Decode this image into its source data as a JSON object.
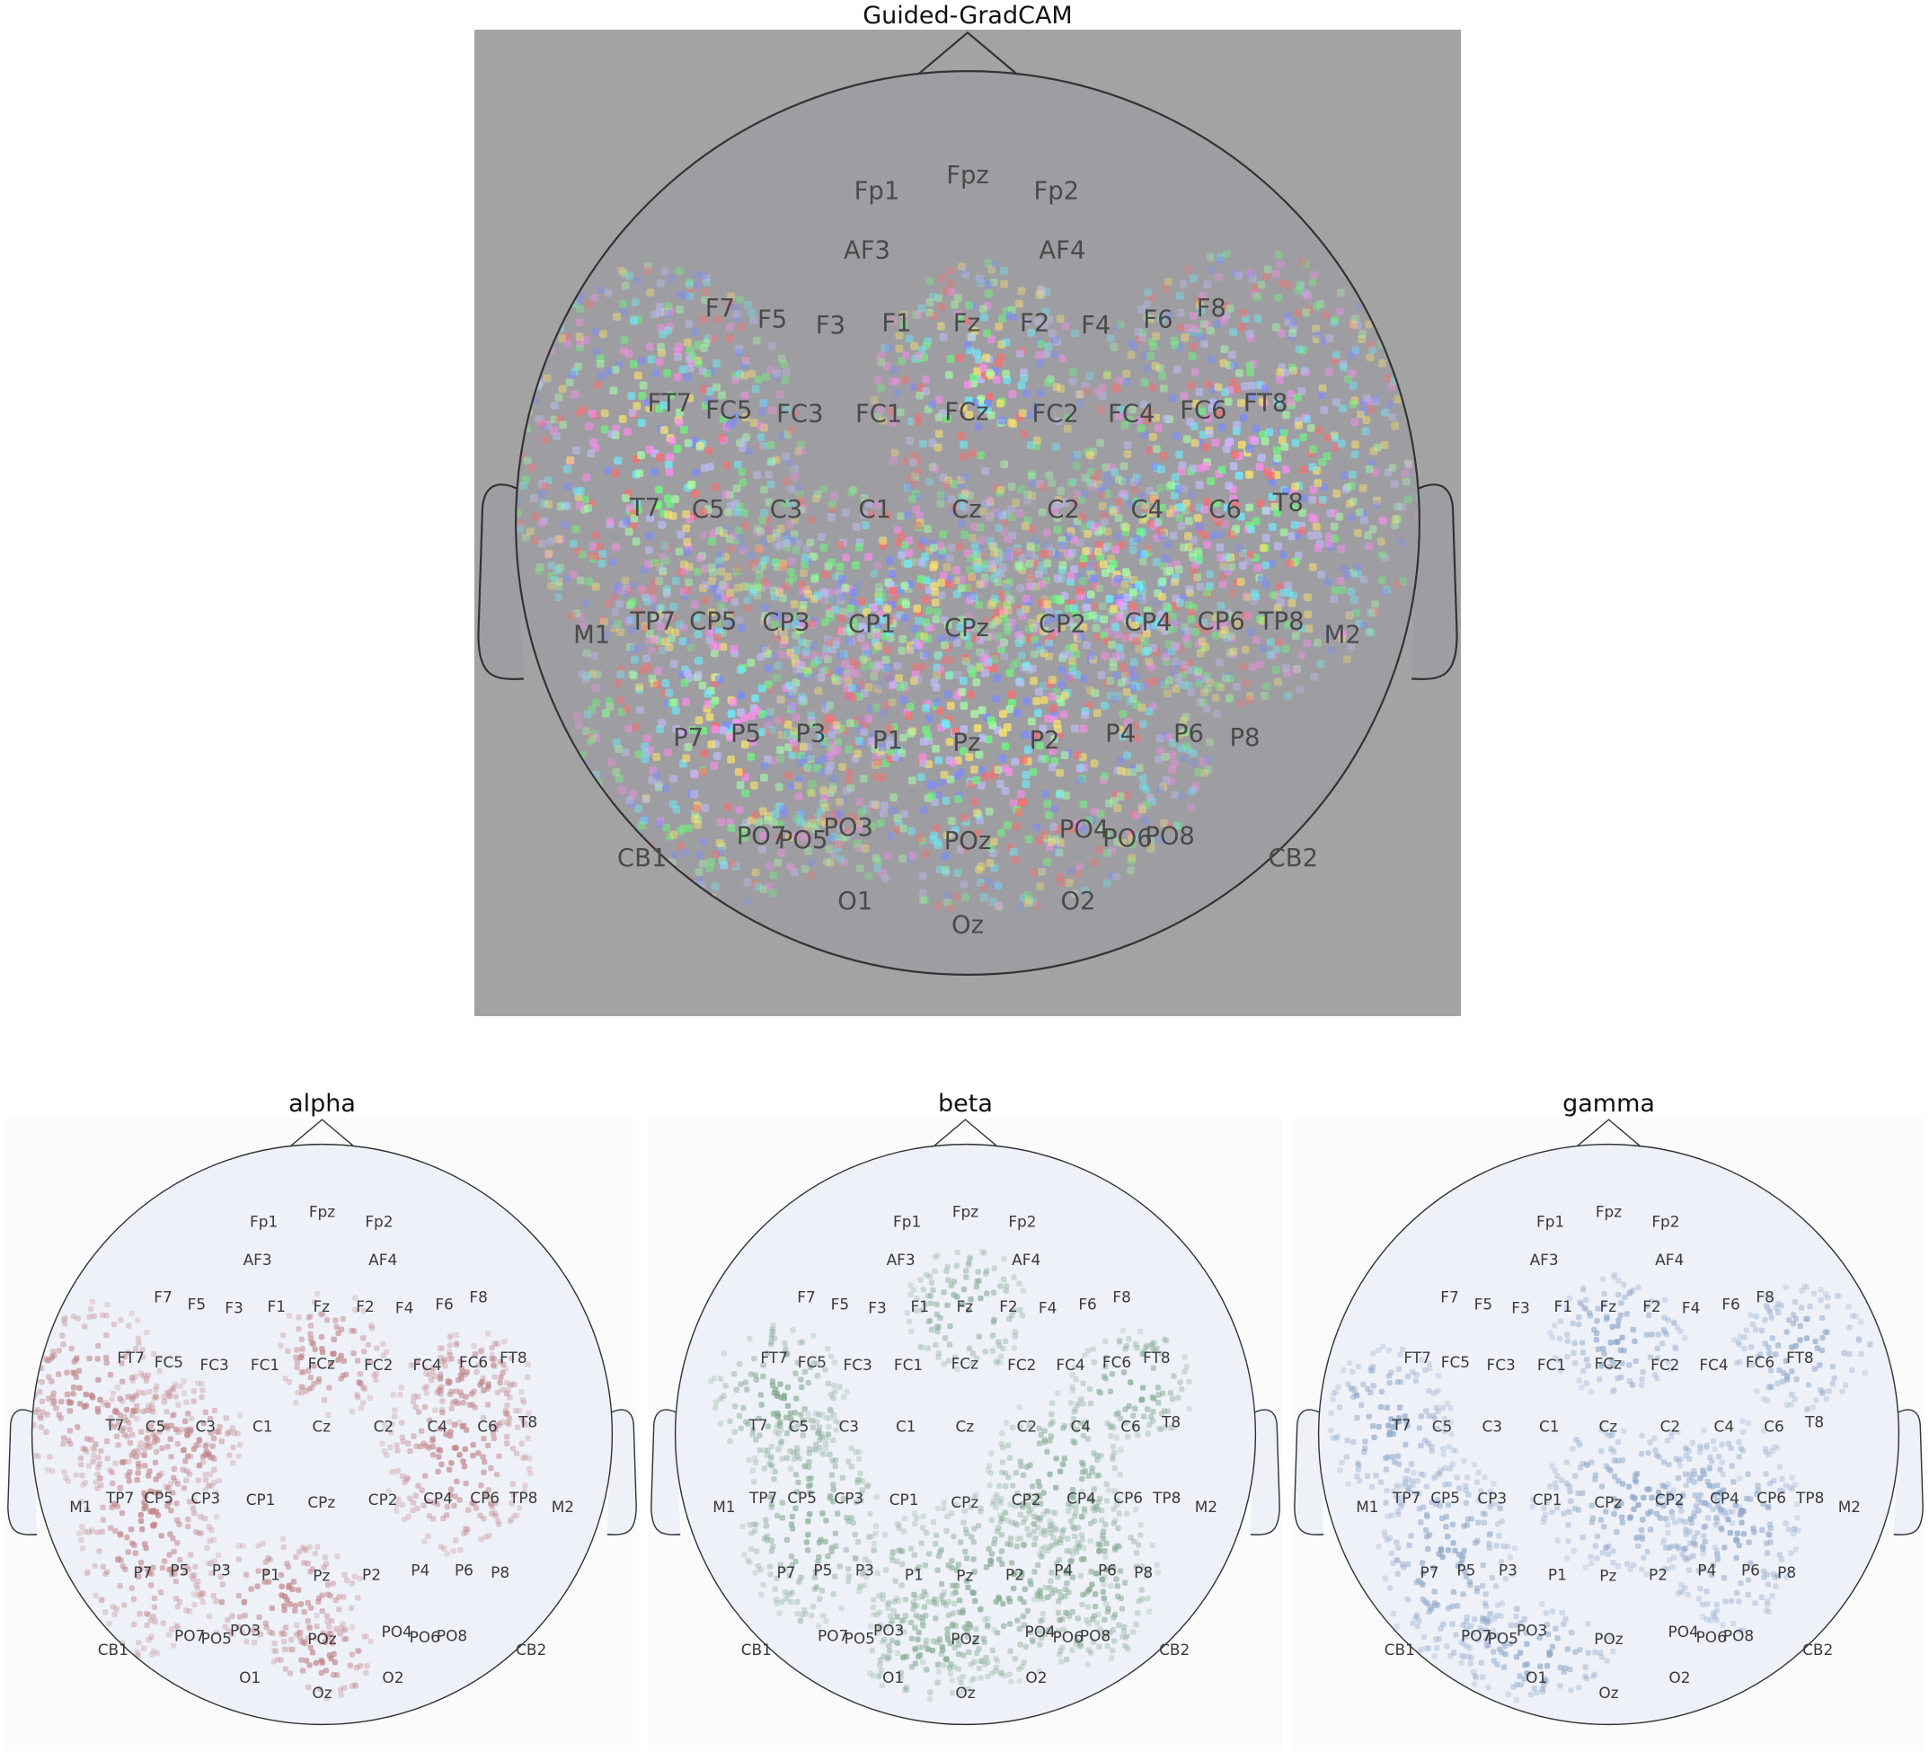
{
  "figure": {
    "main_title": "Guided-GradCAM",
    "band_titles": [
      "alpha",
      "beta",
      "gamma"
    ]
  },
  "colors": {
    "main_background": "#a3a3a3",
    "head_fill_main": "#9e9ea2",
    "outline": "#333333",
    "alpha": "#c0868a",
    "beta": "#86ab92",
    "gamma": "#8fa8c9",
    "band_head_fill": "#eef1f8"
  },
  "electrodes": [
    {
      "label": "Fp1"
    },
    {
      "label": "Fpz"
    },
    {
      "label": "Fp2"
    },
    {
      "label": "AF3"
    },
    {
      "label": "AF4"
    },
    {
      "label": "F7"
    },
    {
      "label": "F5"
    },
    {
      "label": "F3"
    },
    {
      "label": "F1"
    },
    {
      "label": "Fz"
    },
    {
      "label": "F2"
    },
    {
      "label": "F4"
    },
    {
      "label": "F6"
    },
    {
      "label": "F8"
    },
    {
      "label": "FT7"
    },
    {
      "label": "FC5"
    },
    {
      "label": "FC3"
    },
    {
      "label": "FC1"
    },
    {
      "label": "FCz"
    },
    {
      "label": "FC2"
    },
    {
      "label": "FC4"
    },
    {
      "label": "FC6"
    },
    {
      "label": "FT8"
    },
    {
      "label": "T7"
    },
    {
      "label": "C5"
    },
    {
      "label": "C3"
    },
    {
      "label": "C1"
    },
    {
      "label": "Cz"
    },
    {
      "label": "C2"
    },
    {
      "label": "C4"
    },
    {
      "label": "C6"
    },
    {
      "label": "T8"
    },
    {
      "label": "M1"
    },
    {
      "label": "TP7"
    },
    {
      "label": "CP5"
    },
    {
      "label": "CP3"
    },
    {
      "label": "CP1"
    },
    {
      "label": "CPz"
    },
    {
      "label": "CP2"
    },
    {
      "label": "CP4"
    },
    {
      "label": "CP6"
    },
    {
      "label": "TP8"
    },
    {
      "label": "M2"
    },
    {
      "label": "P7"
    },
    {
      "label": "P5"
    },
    {
      "label": "P3"
    },
    {
      "label": "P1"
    },
    {
      "label": "Pz"
    },
    {
      "label": "P2"
    },
    {
      "label": "P4"
    },
    {
      "label": "P6"
    },
    {
      "label": "P8"
    },
    {
      "label": "CB1"
    },
    {
      "label": "PO7"
    },
    {
      "label": "PO5"
    },
    {
      "label": "PO3"
    },
    {
      "label": "POz"
    },
    {
      "label": "PO4"
    },
    {
      "label": "PO6"
    },
    {
      "label": "PO8"
    },
    {
      "label": "CB2"
    },
    {
      "label": "O1"
    },
    {
      "label": "Oz"
    },
    {
      "label": "O2"
    }
  ]
}
